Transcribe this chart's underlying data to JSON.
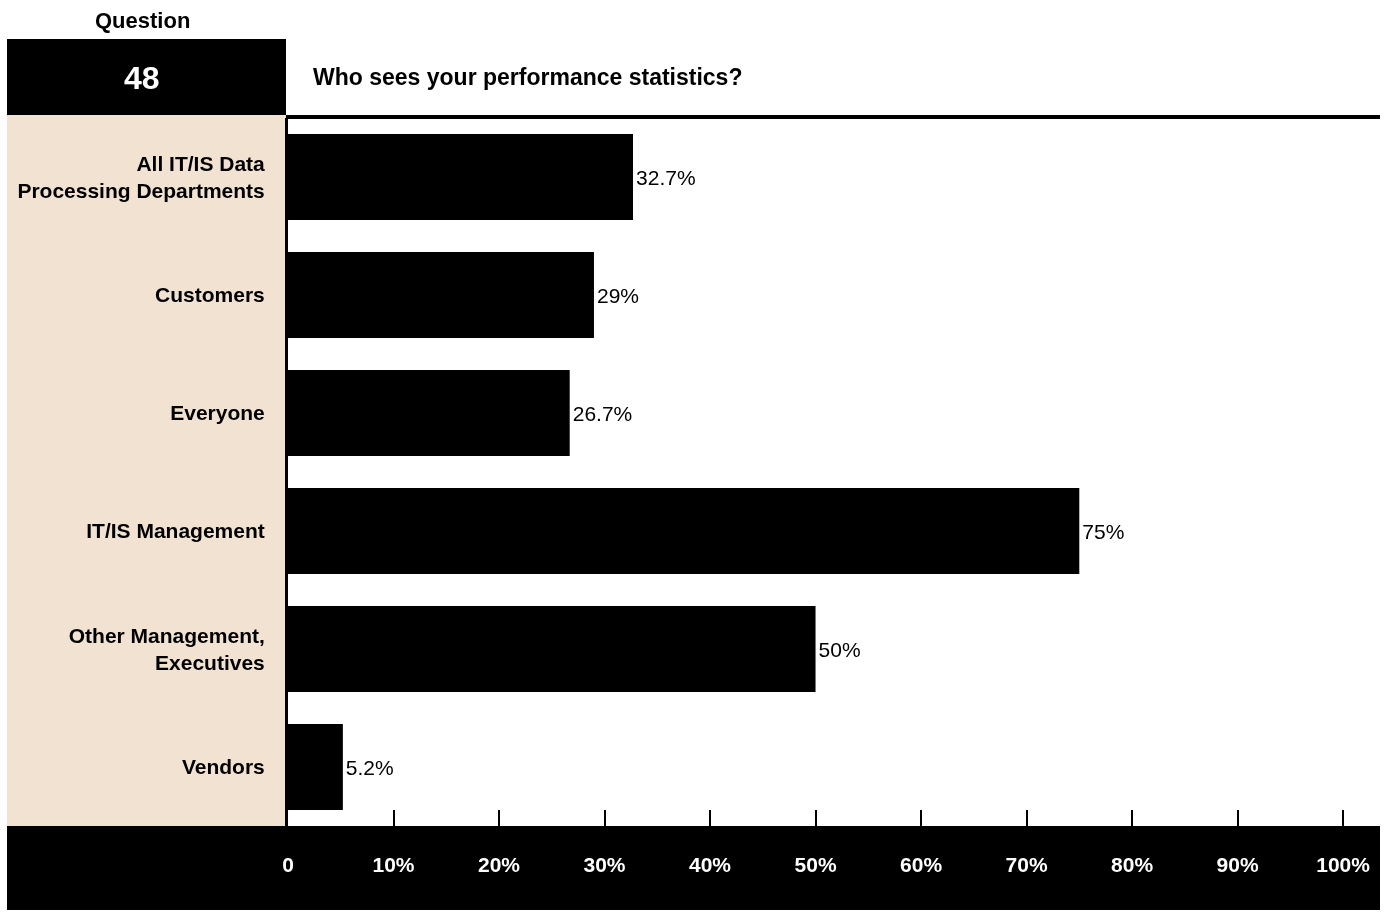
{
  "chart_data": {
    "type": "bar",
    "orientation": "horizontal",
    "title": "Who sees your performance statistics?",
    "annotations": [
      "Question",
      "48"
    ],
    "categories": [
      "All IT/IS Data Processing Departments",
      "Customers",
      "Everyone",
      "IT/IS Management",
      "Other Management, Executives",
      "Vendors"
    ],
    "values": [
      32.7,
      29,
      26.7,
      75,
      50,
      5.2
    ],
    "value_labels": [
      "32.7%",
      "29%",
      "26.7%",
      "75%",
      "50%",
      "5.2%"
    ],
    "color": "#000000",
    "xlim": [
      0,
      103.5
    ],
    "xticks": [
      {
        "value": 0,
        "label": "0"
      },
      {
        "value": 10,
        "label": "10%"
      },
      {
        "value": 20,
        "label": "20%"
      },
      {
        "value": 30,
        "label": "30%"
      },
      {
        "value": 40,
        "label": "40%"
      },
      {
        "value": 50,
        "label": "50%"
      },
      {
        "value": 60,
        "label": "60%"
      },
      {
        "value": 70,
        "label": "70%"
      },
      {
        "value": 80,
        "label": "80%"
      },
      {
        "value": 90,
        "label": "90%"
      },
      {
        "value": 100,
        "label": "100%"
      }
    ],
    "grid": false
  }
}
